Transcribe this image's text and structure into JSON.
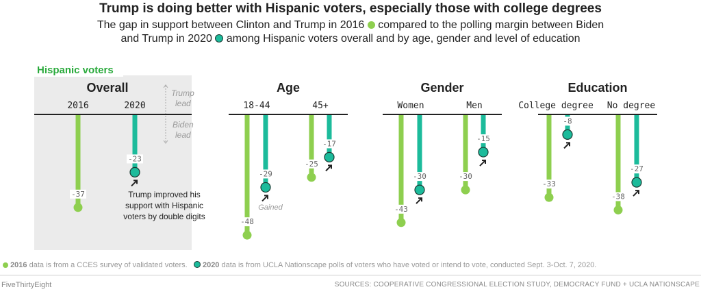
{
  "title": "Trump is doing better with Hispanic voters, especially those with college degrees",
  "subtitle": {
    "part1": "The gap in support between Clinton and Trump in 2016",
    "part2": "compared to the polling margin between Biden",
    "part3": "and Trump in 2020",
    "part4": "among Hispanic voters overall and by age, gender and level of education"
  },
  "colors": {
    "y2016": "#8ecf4f",
    "y2020": "#1cbb9b",
    "panel_bg": "#ebebeb",
    "label_green": "#2aaa3c"
  },
  "chart_data": {
    "type": "bar",
    "label": "Hispanic voters",
    "direction_labels": {
      "up": "Trump lead",
      "down": "Biden lead"
    },
    "annotations": {
      "overall": "Trump improved his support with Hispanic voters by double digits",
      "gained": "Gained"
    },
    "panels": [
      {
        "title": "Overall",
        "groups": [
          {
            "category": "2016",
            "values": [
              -37
            ]
          },
          {
            "category": "2020",
            "values": [
              -23
            ]
          }
        ]
      },
      {
        "title": "Age",
        "groups": [
          {
            "category": "18-44",
            "values": [
              -48,
              -29
            ]
          },
          {
            "category": "45+",
            "values": [
              -25,
              -17
            ]
          }
        ]
      },
      {
        "title": "Gender",
        "groups": [
          {
            "category": "Women",
            "values": [
              -43,
              -30
            ]
          },
          {
            "category": "Men",
            "values": [
              -30,
              -15
            ]
          }
        ]
      },
      {
        "title": "Education",
        "groups": [
          {
            "category": "College degree",
            "values": [
              -33,
              -8
            ]
          },
          {
            "category": "No degree",
            "values": [
              -38,
              -27
            ]
          }
        ]
      }
    ]
  },
  "notes": {
    "n2016_year": "2016",
    "n2016": "data is from a CCES survey of validated voters.",
    "n2020_year": "2020",
    "n2020": "data is from UCLA Nationscape polls of voters who have voted or intend to vote, conducted Sept. 3-Oct. 7, 2020."
  },
  "footer": {
    "brand": "FiveThirtyEight",
    "sources": "SOURCES: COOPERATIVE CONGRESSIONAL ELECTION STUDY, DEMOCRACY FUND + UCLA NATIONSCAPE"
  }
}
